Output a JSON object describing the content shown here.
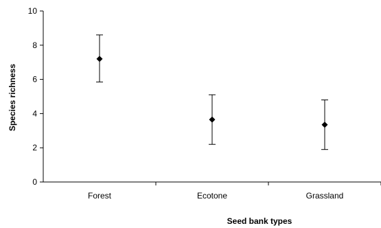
{
  "chart_data": {
    "type": "scatter",
    "categories": [
      "Forest",
      "Ecotone",
      "Grassland"
    ],
    "series": [
      {
        "values": [
          7.2,
          3.65,
          3.35
        ],
        "error_low": [
          5.85,
          2.2,
          1.9
        ],
        "error_high": [
          8.6,
          5.1,
          4.8
        ]
      }
    ],
    "xlabel": "Seed bank types",
    "ylabel": "Species richness",
    "ylim": [
      0,
      10
    ],
    "yticks": [
      0,
      2,
      4,
      6,
      8,
      10
    ],
    "ytick_labels": [
      "0",
      "2",
      "4",
      "6",
      "8",
      "10"
    ],
    "grid": false,
    "legend": "none",
    "marker": "diamond",
    "color": "#000000"
  }
}
